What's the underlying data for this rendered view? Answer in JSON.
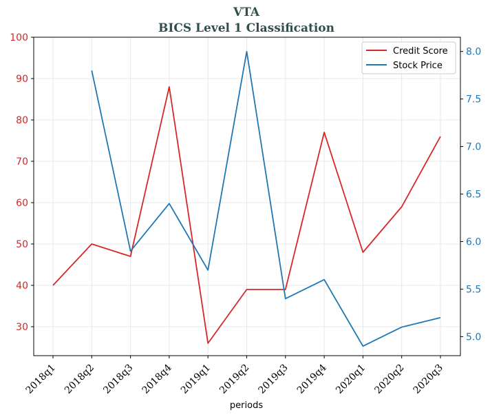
{
  "chart_data": {
    "type": "line",
    "title": "VTA",
    "subtitle": "BICS Level 1 Classification",
    "xlabel": "periods",
    "categories": [
      "2018q1",
      "2018q2",
      "2018q3",
      "2018q4",
      "2019q1",
      "2019q2",
      "2019q3",
      "2019q4",
      "2020q1",
      "2020q2",
      "2020q3"
    ],
    "ylim_left": [
      23,
      100
    ],
    "ylim_right": [
      4.8,
      8.15
    ],
    "yticks_left": [
      30,
      40,
      50,
      60,
      70,
      80,
      90,
      100
    ],
    "yticks_right": [
      5.0,
      5.5,
      6.0,
      6.5,
      7.0,
      7.5,
      8.0
    ],
    "yticks_right_labels": [
      "5.0",
      "5.5",
      "6.0",
      "6.5",
      "7.0",
      "7.5",
      "8.0"
    ],
    "grid": true,
    "legend_position": "top-right",
    "series": [
      {
        "name": "Credit Score",
        "axis": "left",
        "color": "#d62728",
        "values": [
          40,
          50,
          47,
          88,
          26,
          39,
          39,
          77,
          48,
          59,
          76
        ]
      },
      {
        "name": "Stock Price",
        "axis": "right",
        "color": "#1f77b4",
        "values": [
          null,
          7.8,
          5.9,
          6.4,
          5.7,
          8.0,
          5.4,
          5.6,
          4.9,
          5.1,
          5.2
        ]
      }
    ]
  }
}
